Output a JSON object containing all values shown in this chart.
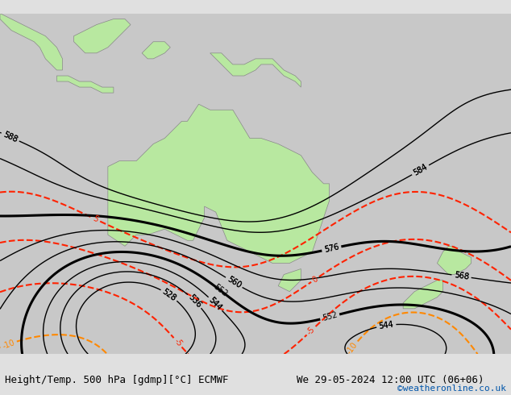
{
  "title_left": "Height/Temp. 500 hPa [gdmp][°C] ECMWF",
  "title_right": "We 29-05-2024 12:00 UTC (06+06)",
  "credit": "©weatheronline.co.uk",
  "ocean_color": "#c8c8c8",
  "land_color": "#d8d8d8",
  "australia_color": "#b8e8a0",
  "nz_color": "#b8e8a0",
  "indo_color": "#b8e8a0",
  "border_color": "#888888",
  "figsize": [
    6.34,
    4.9
  ],
  "dpi": 100,
  "extent": [
    95,
    185,
    -55,
    5
  ],
  "geo_levels": [
    528,
    536,
    544,
    552,
    560,
    568,
    576,
    584,
    588
  ],
  "geo_thick_levels": [
    552,
    576
  ],
  "geo_color": "#000000",
  "geo_lw_thin": 1.0,
  "geo_lw_thick": 2.2,
  "geo_label_fs": 7,
  "temp_levels": [
    -30,
    -25,
    -20,
    -15,
    -10,
    -5,
    0,
    5
  ],
  "temp_colors": {
    "-30": "#00cccc",
    "-25": "#00bbbb",
    "-20": "#88cc00",
    "-15": "#ff8800",
    "-10": "#ff8800",
    "-5": "#ff2200",
    "0": "#ff2200",
    "5": "#ff2200"
  },
  "temp_lw": 1.5,
  "temp_label_fs": 7,
  "bottom_color": "#000000",
  "credit_color": "#0055aa",
  "font_size_bottom": 9,
  "bottom_bg": "#e0e0e0"
}
